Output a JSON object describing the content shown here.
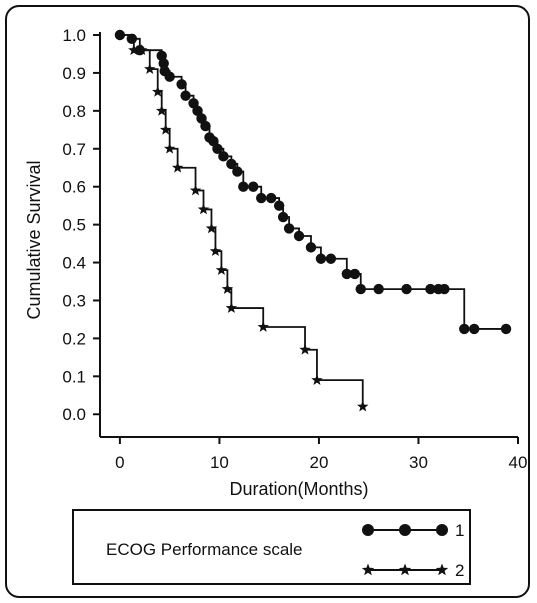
{
  "chart_data": {
    "type": "line",
    "title": "",
    "xlabel": "Duration(Months)",
    "ylabel": "Cumulative Survival",
    "xlim": [
      -2,
      40
    ],
    "ylim": [
      -0.06,
      1.0
    ],
    "x_ticks": [
      0,
      10,
      20,
      30,
      40
    ],
    "y_ticks": [
      0.0,
      0.1,
      0.2,
      0.3,
      0.4,
      0.5,
      0.6,
      0.7,
      0.8,
      0.9,
      1.0
    ],
    "y_tick_labels": [
      "0.0",
      "0.1",
      "0.2",
      "0.3",
      "0.4",
      "0.5",
      "0.6",
      "0.7",
      "0.8",
      "0.9",
      "1.0"
    ],
    "grid": false,
    "legend": {
      "title": "ECOG Performance scale",
      "position": "bottom"
    },
    "series": [
      {
        "name": "1",
        "marker": "circle",
        "step": [
          [
            0,
            1.0
          ],
          [
            1.2,
            0.99
          ],
          [
            2.0,
            0.96
          ],
          [
            4.2,
            0.945
          ],
          [
            4.4,
            0.925
          ],
          [
            4.5,
            0.905
          ],
          [
            5.0,
            0.89
          ],
          [
            6.2,
            0.87
          ],
          [
            6.6,
            0.84
          ],
          [
            7.4,
            0.82
          ],
          [
            7.8,
            0.8
          ],
          [
            8.2,
            0.78
          ],
          [
            8.6,
            0.76
          ],
          [
            9.0,
            0.73
          ],
          [
            9.4,
            0.72
          ],
          [
            9.8,
            0.7
          ],
          [
            10.4,
            0.68
          ],
          [
            11.2,
            0.66
          ],
          [
            11.8,
            0.64
          ],
          [
            12.4,
            0.6
          ],
          [
            13.4,
            0.6
          ],
          [
            14.2,
            0.57
          ],
          [
            15.2,
            0.57
          ],
          [
            16.0,
            0.55
          ],
          [
            16.4,
            0.52
          ],
          [
            17.0,
            0.49
          ],
          [
            18.0,
            0.47
          ],
          [
            19.2,
            0.44
          ],
          [
            20.2,
            0.41
          ],
          [
            21.2,
            0.41
          ],
          [
            22.8,
            0.37
          ],
          [
            23.6,
            0.37
          ],
          [
            24.2,
            0.33
          ],
          [
            26.0,
            0.33
          ],
          [
            28.8,
            0.33
          ],
          [
            31.2,
            0.33
          ],
          [
            32.0,
            0.33
          ],
          [
            32.6,
            0.33
          ],
          [
            34.6,
            0.225
          ],
          [
            35.6,
            0.225
          ],
          [
            38.8,
            0.225
          ]
        ],
        "markers": [
          [
            0,
            1.0
          ],
          [
            1.2,
            0.99
          ],
          [
            2.0,
            0.96
          ],
          [
            4.2,
            0.945
          ],
          [
            4.4,
            0.925
          ],
          [
            4.5,
            0.905
          ],
          [
            5.0,
            0.89
          ],
          [
            6.2,
            0.87
          ],
          [
            6.6,
            0.84
          ],
          [
            7.4,
            0.82
          ],
          [
            7.8,
            0.8
          ],
          [
            8.2,
            0.78
          ],
          [
            8.6,
            0.76
          ],
          [
            9.0,
            0.73
          ],
          [
            9.4,
            0.72
          ],
          [
            9.8,
            0.7
          ],
          [
            10.4,
            0.68
          ],
          [
            11.2,
            0.66
          ],
          [
            11.8,
            0.64
          ],
          [
            12.4,
            0.6
          ],
          [
            13.4,
            0.6
          ],
          [
            14.2,
            0.57
          ],
          [
            15.2,
            0.57
          ],
          [
            16.0,
            0.55
          ],
          [
            16.4,
            0.52
          ],
          [
            17.0,
            0.49
          ],
          [
            18.0,
            0.47
          ],
          [
            19.2,
            0.44
          ],
          [
            20.2,
            0.41
          ],
          [
            21.2,
            0.41
          ],
          [
            22.8,
            0.37
          ],
          [
            23.6,
            0.37
          ],
          [
            24.2,
            0.33
          ],
          [
            26.0,
            0.33
          ],
          [
            28.8,
            0.33
          ],
          [
            31.2,
            0.33
          ],
          [
            32.0,
            0.33
          ],
          [
            32.6,
            0.33
          ],
          [
            34.6,
            0.225
          ],
          [
            35.6,
            0.225
          ],
          [
            38.8,
            0.225
          ]
        ]
      },
      {
        "name": "2",
        "marker": "star",
        "step": [
          [
            0,
            1.0
          ],
          [
            1.4,
            0.96
          ],
          [
            2.2,
            0.96
          ],
          [
            3.0,
            0.91
          ],
          [
            3.8,
            0.85
          ],
          [
            4.2,
            0.8
          ],
          [
            4.6,
            0.75
          ],
          [
            5.0,
            0.7
          ],
          [
            5.8,
            0.65
          ],
          [
            7.6,
            0.59
          ],
          [
            8.4,
            0.54
          ],
          [
            9.2,
            0.49
          ],
          [
            9.6,
            0.43
          ],
          [
            10.2,
            0.38
          ],
          [
            10.8,
            0.33
          ],
          [
            11.2,
            0.28
          ],
          [
            14.4,
            0.23
          ],
          [
            18.6,
            0.17
          ],
          [
            19.8,
            0.09
          ],
          [
            24.4,
            0.02
          ]
        ],
        "markers": [
          [
            1.4,
            0.96
          ],
          [
            2.2,
            0.96
          ],
          [
            3.0,
            0.91
          ],
          [
            3.8,
            0.85
          ],
          [
            4.2,
            0.8
          ],
          [
            4.6,
            0.75
          ],
          [
            5.0,
            0.7
          ],
          [
            5.8,
            0.65
          ],
          [
            7.6,
            0.59
          ],
          [
            8.4,
            0.54
          ],
          [
            9.2,
            0.49
          ],
          [
            9.6,
            0.43
          ],
          [
            10.2,
            0.38
          ],
          [
            10.8,
            0.33
          ],
          [
            11.2,
            0.28
          ],
          [
            14.4,
            0.23
          ],
          [
            18.6,
            0.17
          ],
          [
            19.8,
            0.09
          ],
          [
            24.4,
            0.02
          ]
        ]
      }
    ],
    "colors": {
      "ink": "#111111",
      "background": "#ffffff"
    }
  }
}
